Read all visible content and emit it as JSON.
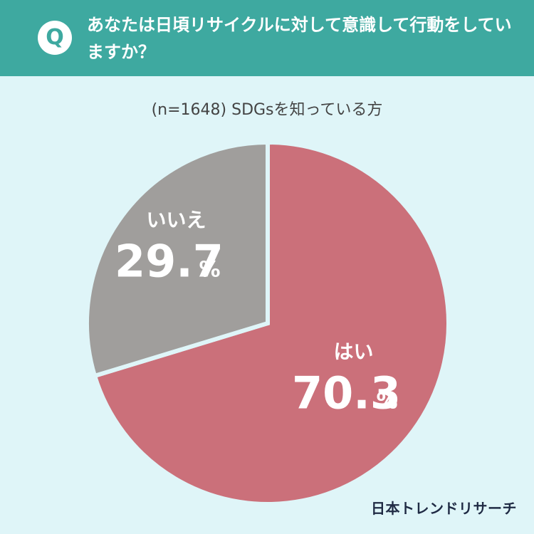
{
  "question": {
    "badge": "Q",
    "text": "あなたは日頃リサイクルに対して意識して行動をしていますか？"
  },
  "subtitle": "(n=1648) SDGsを知っている方",
  "brand": "日本トレンドリサーチ",
  "colors": {
    "header": "#3ea9a0",
    "background": "#dff5f8",
    "yes_slice": "#cb707a",
    "no_slice": "#a09e9c"
  },
  "chart_data": {
    "type": "pie",
    "title": "",
    "categories": [
      "はい",
      "いいえ"
    ],
    "values": [
      70.3,
      29.7
    ],
    "value_labels": [
      "70.3",
      "29.7"
    ],
    "unit": "%",
    "colors": [
      "#cb707a",
      "#a09e9c"
    ]
  }
}
